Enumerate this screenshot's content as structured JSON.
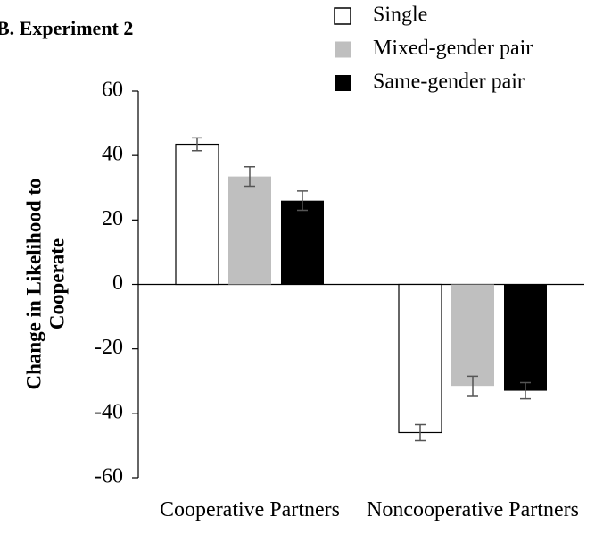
{
  "chart_data": {
    "type": "bar",
    "title": "B. Experiment 2",
    "ylabel": [
      "Change in Likelihood to",
      "Cooperate"
    ],
    "categories": [
      "Cooperative Partners",
      "Noncooperative Partners"
    ],
    "series": [
      {
        "name": "Single",
        "color": "#ffffff",
        "values": [
          43.5,
          -46
        ],
        "errors": [
          2,
          2.5
        ]
      },
      {
        "name": "Mixed-gender pair",
        "color": "#bfbfbf",
        "values": [
          33.5,
          -31.5
        ],
        "errors": [
          3,
          3
        ]
      },
      {
        "name": "Same-gender pair",
        "color": "#000000",
        "values": [
          26,
          -33
        ],
        "errors": [
          3,
          2.5
        ]
      }
    ],
    "ylim": [
      -60,
      60
    ],
    "yticks": [
      -60,
      -40,
      -20,
      0,
      20,
      40,
      60
    ],
    "legend": "upper right"
  }
}
